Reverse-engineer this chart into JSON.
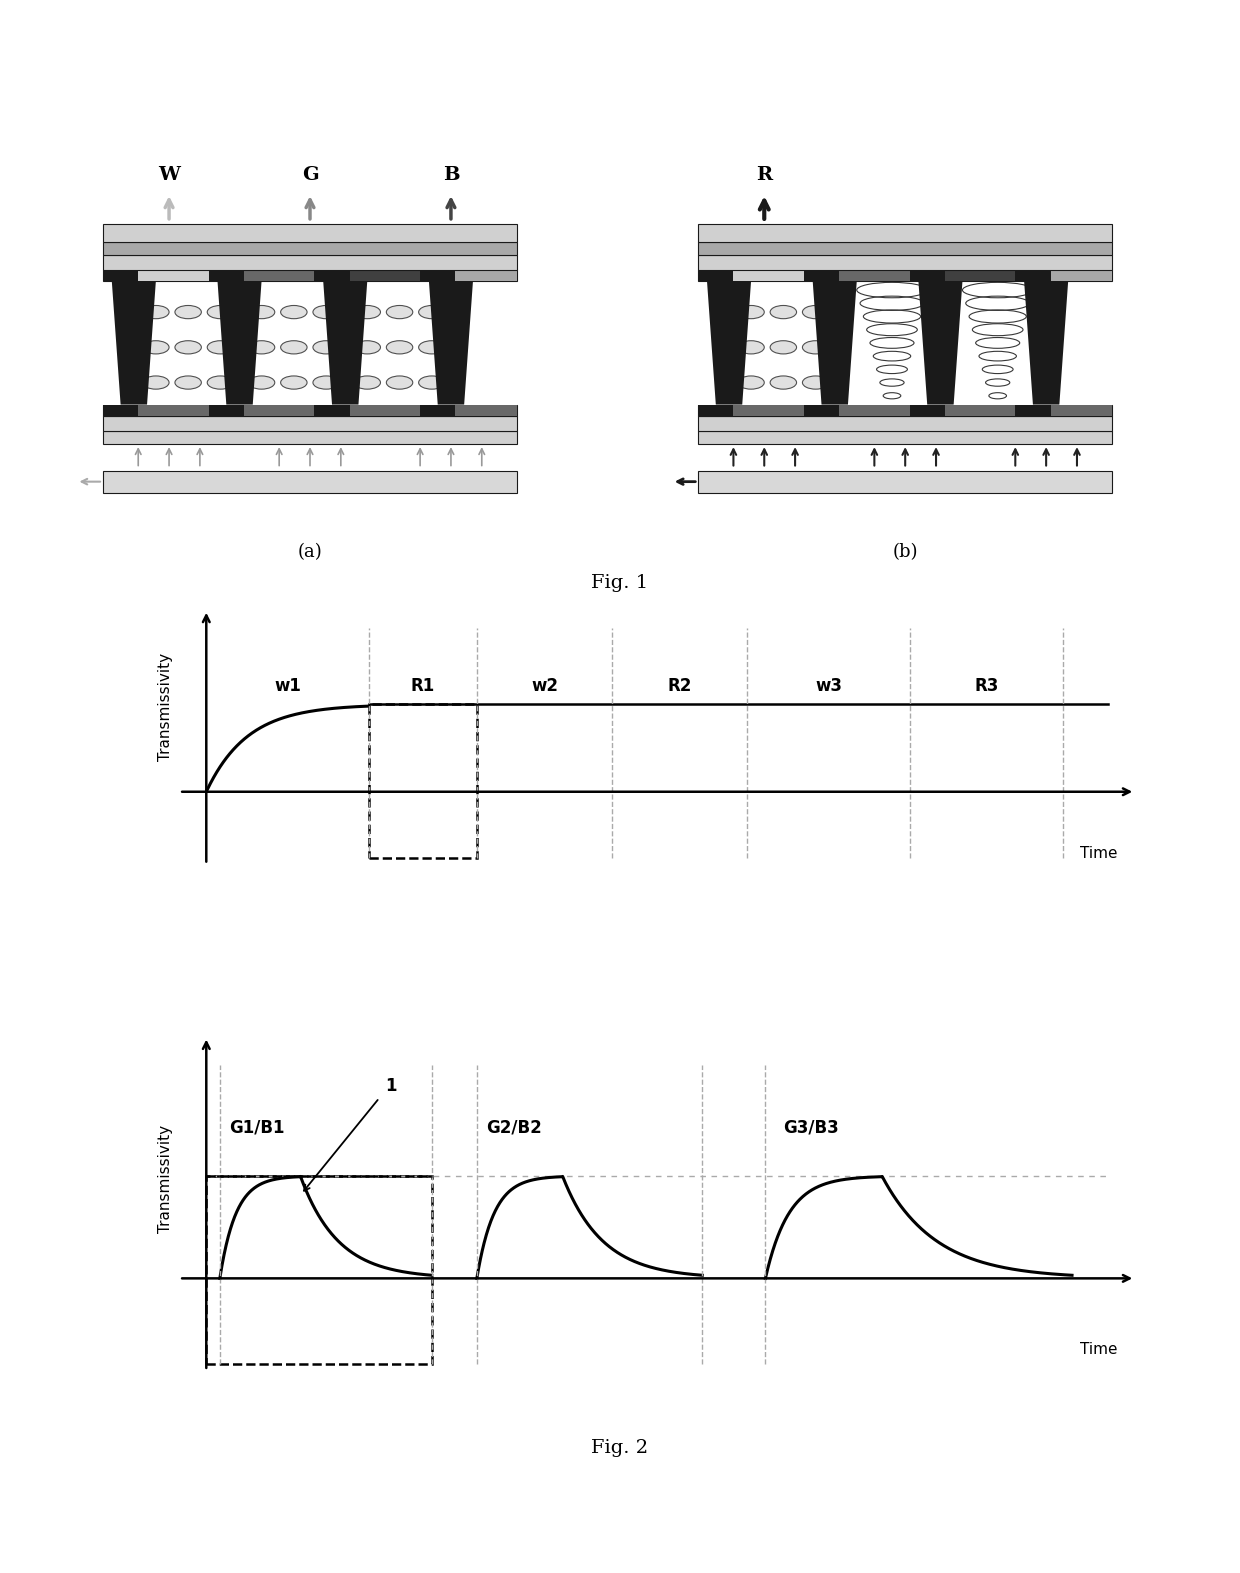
{
  "fig_width": 12.4,
  "fig_height": 15.73,
  "bg_color": "#ffffff",
  "fig1_label": "Fig. 1",
  "fig2_label": "Fig. 2",
  "sub_a_label": "(a)",
  "sub_b_label": "(b)",
  "top_labels_a": [
    "W",
    "G",
    "B"
  ],
  "top_label_b": "R",
  "graph1_ylabel": "Transmissivity",
  "graph1_xlabel": "Time",
  "graph1_period_labels": [
    "w1",
    "R1",
    "w2",
    "R2",
    "w3",
    "R3"
  ],
  "graph2_ylabel": "Transmissivity",
  "graph2_xlabel": "Time",
  "graph2_period_labels": [
    "G1/B1",
    "G2/B2",
    "G3/B3"
  ],
  "graph2_arrow_label": "1"
}
